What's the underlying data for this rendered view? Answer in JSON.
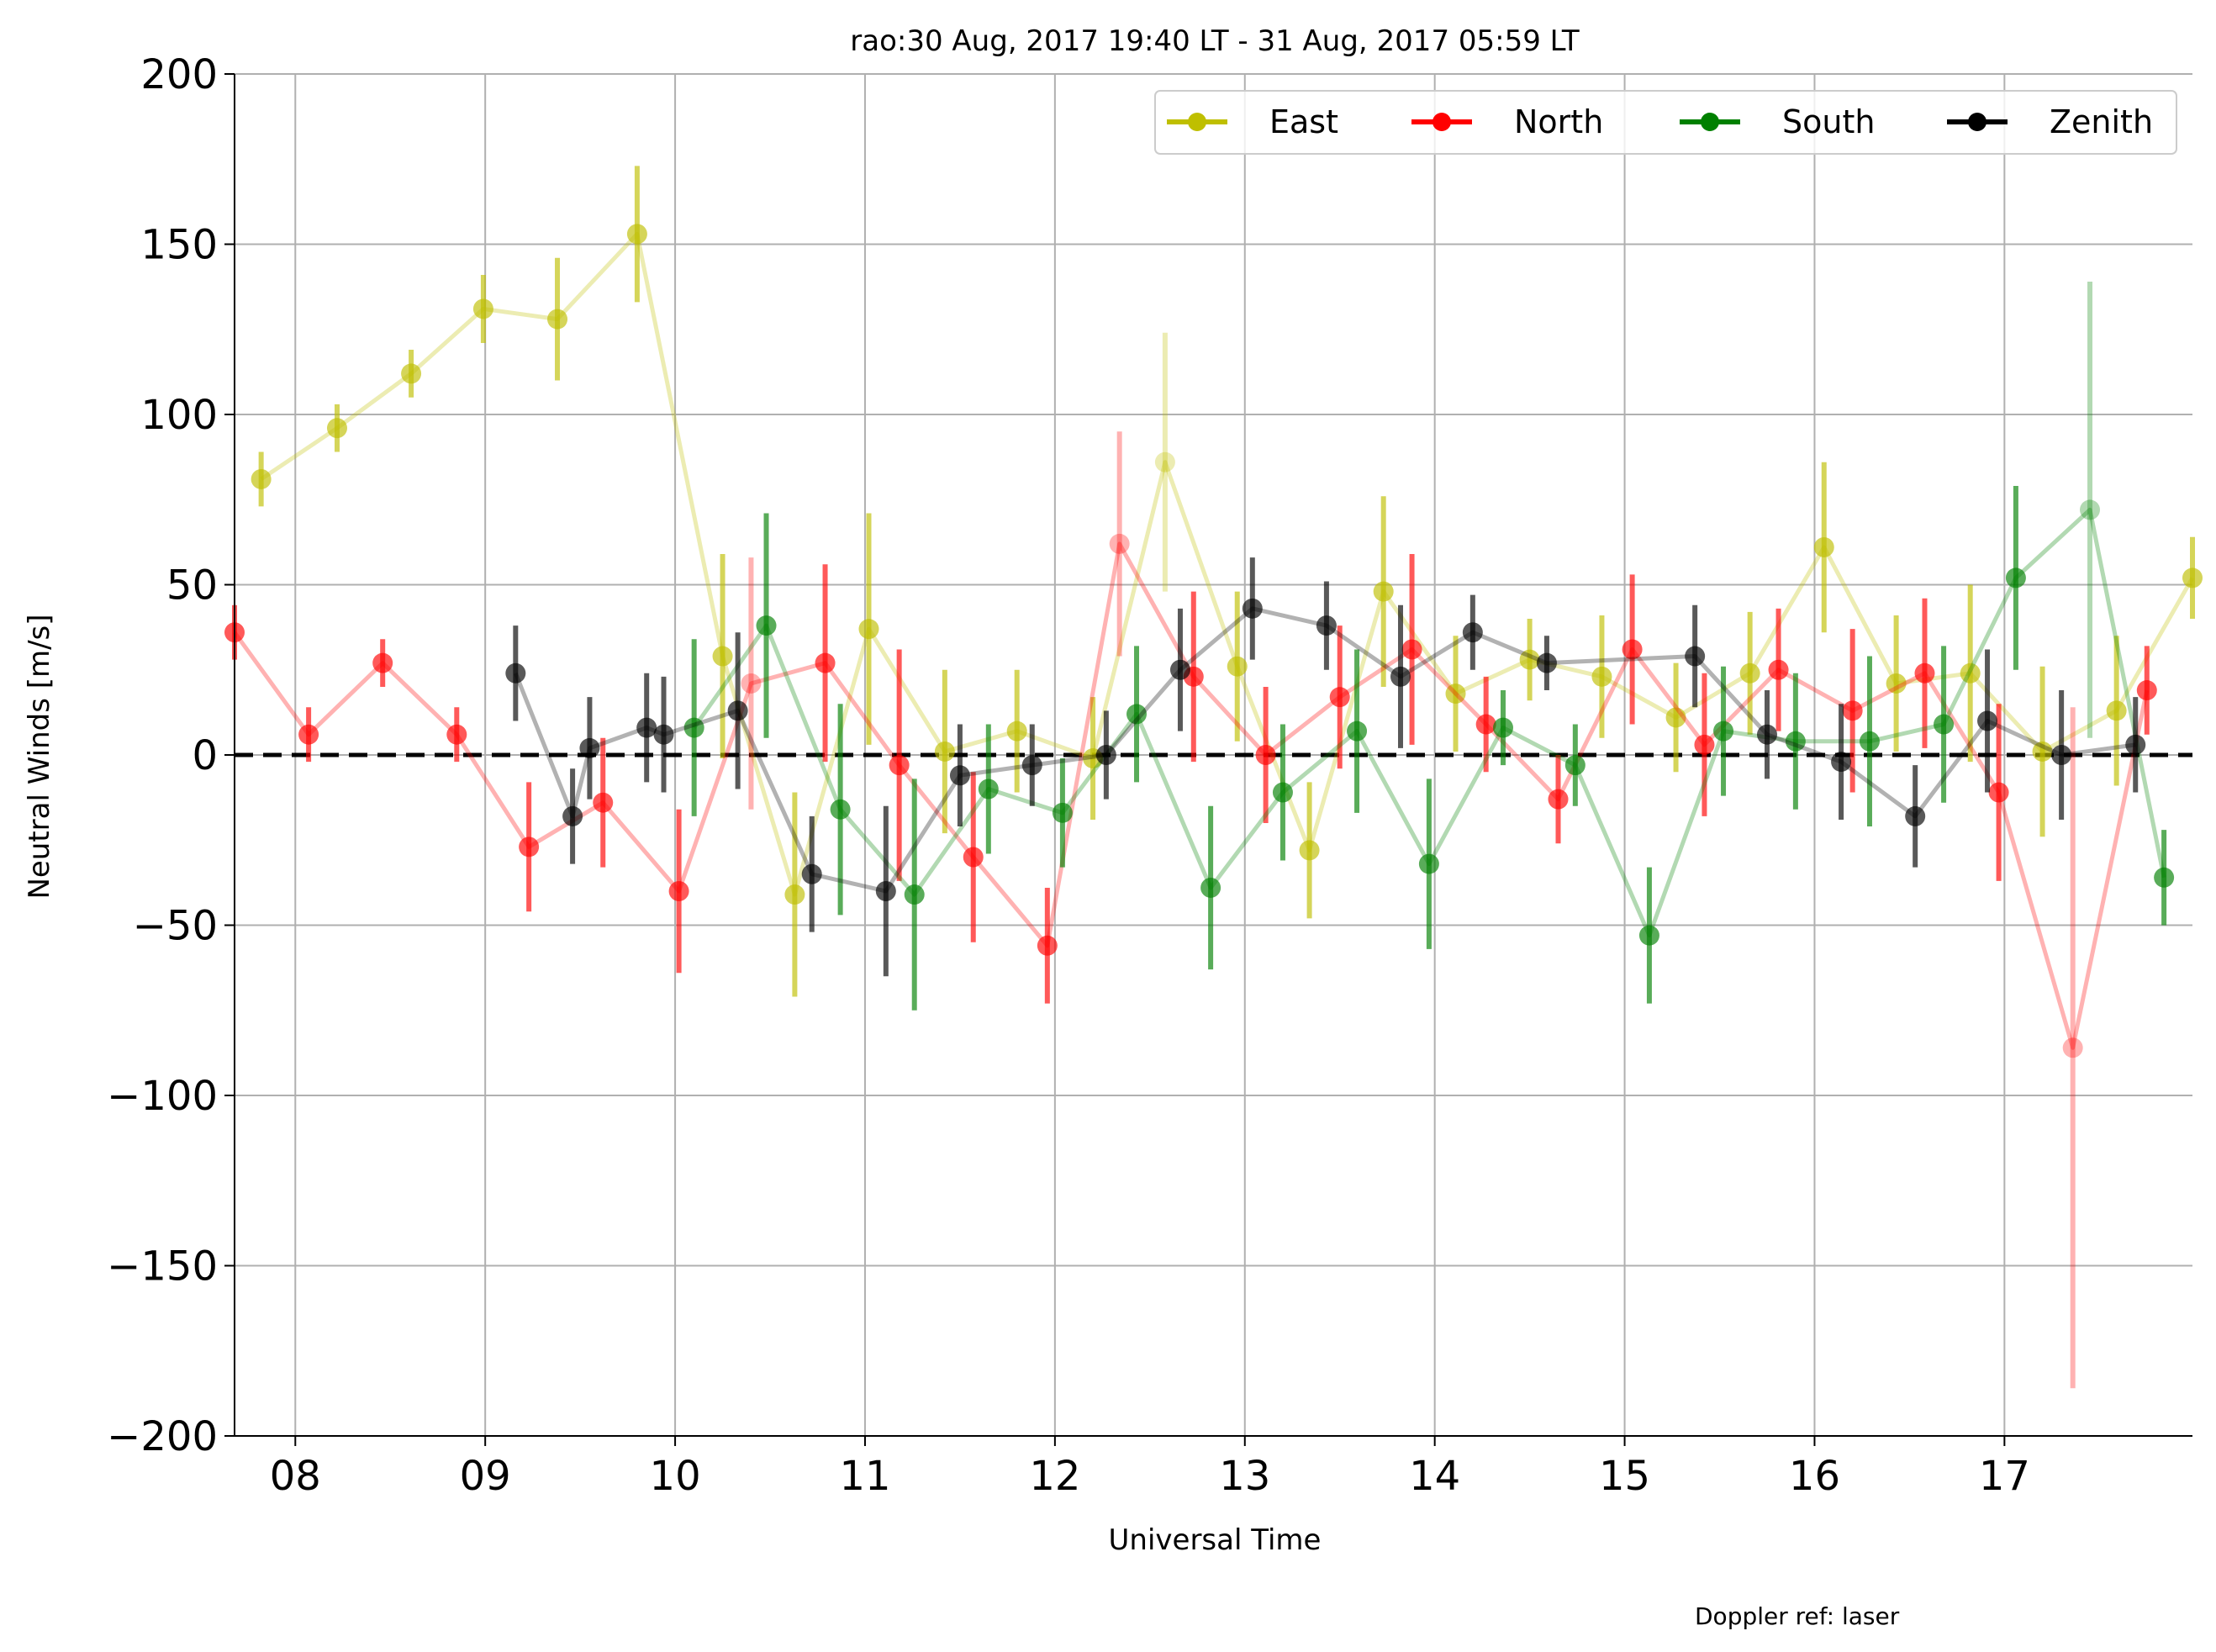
{
  "chart_data": {
    "type": "line",
    "title": "rao:30 Aug, 2017 19:40 LT - 31 Aug, 2017 05:59 LT",
    "xlabel": "Universal Time",
    "ylabel": "Neutral Winds [m/s]",
    "xlim": [
      7.68,
      17.99
    ],
    "ylim": [
      -200,
      200
    ],
    "x_ticks": [
      8,
      9,
      10,
      11,
      12,
      13,
      14,
      15,
      16,
      17
    ],
    "x_tick_labels": [
      "08",
      "09",
      "10",
      "11",
      "12",
      "13",
      "14",
      "15",
      "16",
      "17"
    ],
    "y_ticks": [
      -200,
      -150,
      -100,
      -50,
      0,
      50,
      100,
      150,
      200
    ],
    "y_tick_labels": [
      "−200",
      "−150",
      "−100",
      "−50",
      "0",
      "50",
      "100",
      "150",
      "200"
    ],
    "grid": true,
    "zero_line": {
      "value": 0,
      "style": "dashed",
      "color": "#000000"
    },
    "legend": {
      "placement": "top-right",
      "entries": [
        "East",
        "North",
        "South",
        "Zenith"
      ]
    },
    "annotation": "Doppler ref: laser",
    "series": [
      {
        "name": "East",
        "color": "#bfbf00",
        "x": [
          7.82,
          8.22,
          8.61,
          8.99,
          9.38,
          9.8,
          10.25,
          10.63,
          11.02,
          11.42,
          11.8,
          12.2,
          12.58,
          12.96,
          13.34,
          13.73,
          14.11,
          14.5,
          14.88,
          15.27,
          15.66,
          16.05,
          16.43,
          16.82,
          17.2,
          17.59,
          17.99
        ],
        "y": [
          81,
          96,
          112,
          131,
          128,
          153,
          29,
          -41,
          37,
          1,
          7,
          -1,
          86,
          26,
          -28,
          48,
          18,
          28,
          23,
          11,
          24,
          61,
          21,
          24,
          1,
          13,
          52
        ],
        "err": [
          8,
          7,
          7,
          10,
          18,
          20,
          30,
          30,
          34,
          24,
          18,
          18,
          38,
          22,
          20,
          28,
          17,
          12,
          18,
          16,
          18,
          25,
          20,
          26,
          25,
          22,
          12
        ],
        "alpha": [
          0.65,
          0.65,
          0.65,
          0.65,
          0.65,
          0.65,
          0.65,
          0.65,
          0.65,
          0.65,
          0.65,
          0.65,
          0.3,
          0.65,
          0.65,
          0.65,
          0.65,
          0.65,
          0.65,
          0.65,
          0.65,
          0.65,
          0.65,
          0.65,
          0.65,
          0.65,
          0.65
        ]
      },
      {
        "name": "North",
        "color": "#ff0000",
        "x": [
          7.68,
          8.07,
          8.46,
          8.85,
          9.23,
          9.62,
          10.02,
          10.4,
          10.79,
          11.18,
          11.57,
          11.96,
          12.34,
          12.73,
          13.11,
          13.5,
          13.88,
          14.27,
          14.65,
          15.04,
          15.42,
          15.81,
          16.2,
          16.58,
          16.97,
          17.36,
          17.75
        ],
        "y": [
          36,
          6,
          27,
          6,
          -27,
          -14,
          -40,
          21,
          27,
          -3,
          -30,
          -56,
          62,
          23,
          0,
          17,
          31,
          9,
          -13,
          31,
          3,
          25,
          13,
          24,
          -11,
          -86,
          19
        ],
        "err": [
          8,
          8,
          7,
          8,
          19,
          19,
          24,
          37,
          29,
          34,
          25,
          17,
          33,
          25,
          20,
          21,
          28,
          14,
          13,
          22,
          21,
          18,
          24,
          22,
          26,
          100,
          13
        ],
        "alpha": [
          0.65,
          0.65,
          0.65,
          0.65,
          0.65,
          0.65,
          0.65,
          0.3,
          0.65,
          0.65,
          0.65,
          0.65,
          0.3,
          0.65,
          0.65,
          0.65,
          0.65,
          0.65,
          0.65,
          0.65,
          0.65,
          0.65,
          0.65,
          0.65,
          0.65,
          0.3,
          0.65
        ]
      },
      {
        "name": "South",
        "color": "#008000",
        "x": [
          10.1,
          10.48,
          10.87,
          11.26,
          11.65,
          12.04,
          12.43,
          12.82,
          13.2,
          13.59,
          13.97,
          14.36,
          14.74,
          15.13,
          15.52,
          15.9,
          16.29,
          16.68,
          17.06,
          17.45,
          17.84
        ],
        "y": [
          8,
          38,
          -16,
          -41,
          -10,
          -17,
          12,
          -39,
          -11,
          7,
          -32,
          8,
          -3,
          -53,
          7,
          4,
          4,
          9,
          52,
          72,
          -36
        ],
        "err": [
          26,
          33,
          31,
          34,
          19,
          16,
          20,
          24,
          20,
          24,
          25,
          11,
          12,
          20,
          19,
          20,
          25,
          23,
          27,
          67,
          14
        ],
        "alpha": [
          0.65,
          0.65,
          0.65,
          0.65,
          0.65,
          0.65,
          0.65,
          0.65,
          0.65,
          0.65,
          0.65,
          0.65,
          0.65,
          0.65,
          0.65,
          0.65,
          0.65,
          0.65,
          0.65,
          0.3,
          0.65
        ]
      },
      {
        "name": "Zenith",
        "color": "#000000",
        "x": [
          9.16,
          9.46,
          9.55,
          9.85,
          9.94,
          10.33,
          10.72,
          11.11,
          11.5,
          11.88,
          12.27,
          12.66,
          13.04,
          13.43,
          13.82,
          14.2,
          14.59,
          15.37,
          15.75,
          16.14,
          16.53,
          16.91,
          17.3,
          17.69
        ],
        "y": [
          24,
          -18,
          2,
          8,
          6,
          13,
          -35,
          -40,
          -6,
          -3,
          0,
          25,
          43,
          38,
          23,
          36,
          27,
          29,
          6,
          -2,
          -18,
          10,
          0,
          3
        ],
        "err": [
          14,
          14,
          15,
          16,
          17,
          23,
          17,
          25,
          15,
          12,
          13,
          18,
          15,
          13,
          21,
          11,
          8,
          15,
          13,
          17,
          15,
          21,
          19,
          14
        ],
        "alpha": [
          0.65,
          0.65,
          0.65,
          0.65,
          0.65,
          0.65,
          0.65,
          0.65,
          0.65,
          0.65,
          0.65,
          0.65,
          0.65,
          0.65,
          0.65,
          0.65,
          0.65,
          0.65,
          0.65,
          0.65,
          0.65,
          0.65,
          0.65,
          0.65
        ]
      }
    ]
  }
}
